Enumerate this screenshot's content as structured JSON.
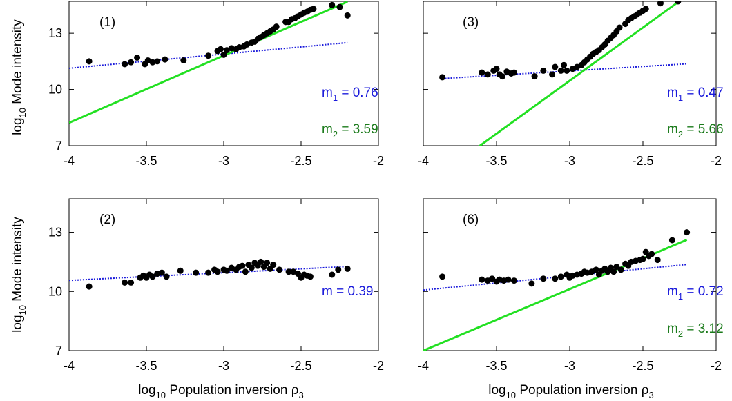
{
  "shared_axes": {
    "x_ticks": [
      "-4",
      "-3.5",
      "-3",
      "-2.5",
      "-2"
    ],
    "y_ticks": [
      "7",
      "10",
      "13"
    ],
    "x_label": {
      "main": "log",
      "sub": "10",
      "rest": " Population inversion ρ",
      "sub2": "3"
    },
    "y_label": {
      "main": "log",
      "sub": "10",
      "rest": " Mode intensity"
    }
  },
  "colors": {
    "fit1": "#1a1adb",
    "fit2": "#22e022",
    "points": "#000000",
    "m2_text": "#1a7a1a"
  },
  "chart_data": [
    {
      "type": "scatter",
      "panel_label": "(1)",
      "xlim": [
        -4,
        -2
      ],
      "ylim": [
        7,
        14.7
      ],
      "grid": false,
      "points": [
        [
          -3.87,
          11.5
        ],
        [
          -3.64,
          11.35
        ],
        [
          -3.6,
          11.45
        ],
        [
          -3.56,
          11.7
        ],
        [
          -3.51,
          11.35
        ],
        [
          -3.49,
          11.55
        ],
        [
          -3.46,
          11.45
        ],
        [
          -3.43,
          11.5
        ],
        [
          -3.38,
          11.6
        ],
        [
          -3.26,
          11.55
        ],
        [
          -3.1,
          11.8
        ],
        [
          -3.04,
          12.05
        ],
        [
          -3.02,
          12.15
        ],
        [
          -3.0,
          11.85
        ],
        [
          -2.98,
          12.1
        ],
        [
          -2.95,
          12.2
        ],
        [
          -2.92,
          12.15
        ],
        [
          -2.9,
          12.25
        ],
        [
          -2.87,
          12.3
        ],
        [
          -2.85,
          12.4
        ],
        [
          -2.82,
          12.5
        ],
        [
          -2.8,
          12.55
        ],
        [
          -2.78,
          12.7
        ],
        [
          -2.76,
          12.8
        ],
        [
          -2.74,
          12.9
        ],
        [
          -2.72,
          13.0
        ],
        [
          -2.7,
          13.1
        ],
        [
          -2.68,
          13.2
        ],
        [
          -2.66,
          13.35
        ],
        [
          -2.6,
          13.6
        ],
        [
          -2.58,
          13.6
        ],
        [
          -2.56,
          13.75
        ],
        [
          -2.54,
          13.8
        ],
        [
          -2.52,
          13.9
        ],
        [
          -2.5,
          14.0
        ],
        [
          -2.48,
          14.1
        ],
        [
          -2.46,
          14.15
        ],
        [
          -2.44,
          14.25
        ],
        [
          -2.42,
          14.3
        ],
        [
          -2.3,
          14.5
        ],
        [
          -2.25,
          14.4
        ],
        [
          -2.2,
          13.95
        ]
      ],
      "fits": [
        {
          "label": "m",
          "sub": "1",
          "value": " = 0.76",
          "style": "dotted",
          "color": "#1a1adb",
          "slope": 0.76,
          "intercept": 14.17,
          "x": [
            -4.0,
            -2.2
          ]
        },
        {
          "label": "m",
          "sub": "2",
          "value": " = 3.59",
          "style": "solid",
          "color": "#22e022",
          "slope": 3.59,
          "intercept": 22.58,
          "x": [
            -4.0,
            -2.2
          ]
        }
      ]
    },
    {
      "type": "scatter",
      "panel_label": "(3)",
      "xlim": [
        -4,
        -2
      ],
      "ylim": [
        7,
        14.7
      ],
      "grid": false,
      "points": [
        [
          -3.87,
          10.65
        ],
        [
          -3.6,
          10.9
        ],
        [
          -3.56,
          10.8
        ],
        [
          -3.52,
          11.0
        ],
        [
          -3.5,
          11.1
        ],
        [
          -3.48,
          10.8
        ],
        [
          -3.46,
          10.7
        ],
        [
          -3.43,
          10.95
        ],
        [
          -3.4,
          10.85
        ],
        [
          -3.38,
          10.9
        ],
        [
          -3.24,
          10.7
        ],
        [
          -3.18,
          11.0
        ],
        [
          -3.12,
          10.8
        ],
        [
          -3.1,
          11.2
        ],
        [
          -3.06,
          11.0
        ],
        [
          -3.04,
          11.3
        ],
        [
          -3.02,
          11.0
        ],
        [
          -2.98,
          11.1
        ],
        [
          -2.95,
          11.2
        ],
        [
          -2.92,
          11.3
        ],
        [
          -2.9,
          11.45
        ],
        [
          -2.88,
          11.6
        ],
        [
          -2.86,
          11.75
        ],
        [
          -2.84,
          11.9
        ],
        [
          -2.82,
          12.0
        ],
        [
          -2.8,
          12.1
        ],
        [
          -2.78,
          12.25
        ],
        [
          -2.76,
          12.4
        ],
        [
          -2.74,
          12.6
        ],
        [
          -2.72,
          12.75
        ],
        [
          -2.7,
          12.9
        ],
        [
          -2.68,
          13.1
        ],
        [
          -2.66,
          13.3
        ],
        [
          -2.62,
          13.5
        ],
        [
          -2.6,
          13.7
        ],
        [
          -2.58,
          13.8
        ],
        [
          -2.56,
          13.9
        ],
        [
          -2.54,
          14.0
        ],
        [
          -2.52,
          14.1
        ],
        [
          -2.5,
          14.2
        ],
        [
          -2.48,
          14.3
        ],
        [
          -2.38,
          14.6
        ],
        [
          -2.26,
          14.7
        ]
      ],
      "fits": [
        {
          "label": "m",
          "sub": "1",
          "value": " = 0.47",
          "style": "dotted",
          "color": "#1a1adb",
          "slope": 0.47,
          "intercept": 12.4,
          "x": [
            -3.87,
            -2.2
          ]
        },
        {
          "label": "m",
          "sub": "2",
          "value": " = 5.66",
          "style": "solid",
          "color": "#22e022",
          "slope": 5.66,
          "intercept": 27.45,
          "x": [
            -3.62,
            -2.25
          ]
        }
      ]
    },
    {
      "type": "scatter",
      "panel_label": "(2)",
      "xlim": [
        -4,
        -2
      ],
      "ylim": [
        7,
        14.7
      ],
      "grid": false,
      "points": [
        [
          -3.87,
          10.25
        ],
        [
          -3.64,
          10.45
        ],
        [
          -3.6,
          10.45
        ],
        [
          -3.54,
          10.7
        ],
        [
          -3.52,
          10.8
        ],
        [
          -3.5,
          10.7
        ],
        [
          -3.48,
          10.85
        ],
        [
          -3.46,
          10.75
        ],
        [
          -3.43,
          10.9
        ],
        [
          -3.4,
          10.95
        ],
        [
          -3.37,
          10.75
        ],
        [
          -3.28,
          11.05
        ],
        [
          -3.18,
          10.95
        ],
        [
          -3.1,
          10.95
        ],
        [
          -3.06,
          11.1
        ],
        [
          -3.04,
          11.0
        ],
        [
          -3.0,
          11.1
        ],
        [
          -2.98,
          11.05
        ],
        [
          -2.95,
          11.2
        ],
        [
          -2.92,
          11.1
        ],
        [
          -2.9,
          11.25
        ],
        [
          -2.88,
          11.3
        ],
        [
          -2.86,
          11.0
        ],
        [
          -2.84,
          11.35
        ],
        [
          -2.82,
          11.2
        ],
        [
          -2.8,
          11.45
        ],
        [
          -2.78,
          11.3
        ],
        [
          -2.76,
          11.5
        ],
        [
          -2.74,
          11.25
        ],
        [
          -2.72,
          11.45
        ],
        [
          -2.7,
          11.15
        ],
        [
          -2.68,
          11.35
        ],
        [
          -2.64,
          11.1
        ],
        [
          -2.58,
          11.0
        ],
        [
          -2.55,
          11.0
        ],
        [
          -2.52,
          10.9
        ],
        [
          -2.5,
          10.7
        ],
        [
          -2.48,
          10.85
        ],
        [
          -2.46,
          10.8
        ],
        [
          -2.44,
          10.75
        ],
        [
          -2.3,
          10.85
        ],
        [
          -2.26,
          11.1
        ],
        [
          -2.2,
          11.15
        ]
      ],
      "fits": [
        {
          "label": "m",
          "sub": "",
          "value": " = 0.39",
          "style": "dotted",
          "color": "#1a1adb",
          "slope": 0.39,
          "intercept": 12.12,
          "x": [
            -4.0,
            -2.2
          ]
        }
      ]
    },
    {
      "type": "scatter",
      "panel_label": "(6)",
      "xlim": [
        -4,
        -2
      ],
      "ylim": [
        7,
        14.7
      ],
      "grid": false,
      "points": [
        [
          -3.87,
          10.75
        ],
        [
          -3.6,
          10.6
        ],
        [
          -3.56,
          10.55
        ],
        [
          -3.53,
          10.65
        ],
        [
          -3.5,
          10.5
        ],
        [
          -3.48,
          10.6
        ],
        [
          -3.45,
          10.55
        ],
        [
          -3.42,
          10.6
        ],
        [
          -3.38,
          10.55
        ],
        [
          -3.26,
          10.4
        ],
        [
          -3.18,
          10.65
        ],
        [
          -3.1,
          10.65
        ],
        [
          -3.06,
          10.75
        ],
        [
          -3.02,
          10.85
        ],
        [
          -3.0,
          10.7
        ],
        [
          -2.98,
          10.8
        ],
        [
          -2.95,
          10.85
        ],
        [
          -2.92,
          10.9
        ],
        [
          -2.9,
          11.0
        ],
        [
          -2.88,
          10.95
        ],
        [
          -2.85,
          11.0
        ],
        [
          -2.82,
          11.1
        ],
        [
          -2.8,
          10.85
        ],
        [
          -2.78,
          11.05
        ],
        [
          -2.76,
          11.15
        ],
        [
          -2.74,
          11.0
        ],
        [
          -2.72,
          11.2
        ],
        [
          -2.7,
          11.0
        ],
        [
          -2.68,
          11.25
        ],
        [
          -2.65,
          11.1
        ],
        [
          -2.62,
          11.4
        ],
        [
          -2.6,
          11.3
        ],
        [
          -2.58,
          11.5
        ],
        [
          -2.55,
          11.55
        ],
        [
          -2.52,
          11.6
        ],
        [
          -2.5,
          11.65
        ],
        [
          -2.48,
          12.0
        ],
        [
          -2.46,
          11.8
        ],
        [
          -2.44,
          11.9
        ],
        [
          -2.4,
          11.6
        ],
        [
          -2.3,
          12.6
        ],
        [
          -2.2,
          13.0
        ]
      ],
      "fits": [
        {
          "label": "m",
          "sub": "1",
          "value": " = 0.72",
          "style": "dotted",
          "color": "#1a1adb",
          "slope": 0.72,
          "intercept": 12.95,
          "x": [
            -4.0,
            -2.2
          ]
        },
        {
          "label": "m",
          "sub": "2",
          "value": " = 3.12",
          "style": "solid",
          "color": "#22e022",
          "slope": 3.12,
          "intercept": 19.48,
          "x": [
            -4.0,
            -2.2
          ]
        }
      ]
    }
  ]
}
